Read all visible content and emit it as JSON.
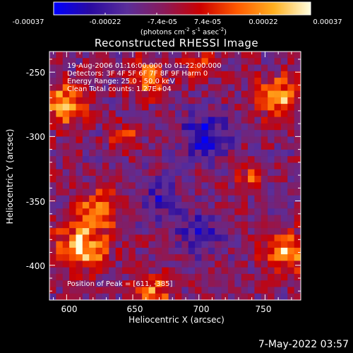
{
  "colorbar": {
    "ticks": [
      "-0.00037",
      "-0.00022",
      "-7.4e-05",
      "7.4e-05",
      "0.00022",
      "0.00037"
    ],
    "units_prefix": "(photons cm",
    "units_exp1": "-2",
    "units_mid": " s",
    "units_exp2": "-1",
    "units_mid2": " asec",
    "units_exp3": "-2",
    "units_suffix": ")"
  },
  "title": "Reconstructed RHESSI Image",
  "annotations": {
    "line1": "19-Aug-2006 01:16:00.000 to 01:22:00.000",
    "line2": "Detectors: 3F 4F 5F 6F 7F 8F 9F  Harm 0",
    "line3": "Energy Range: 25.0 - 50.0 keV",
    "line4": "Clean     Total counts: 1.27E+04",
    "peak": "Position of Peak = [611, -385]"
  },
  "axes": {
    "xlabel": "Heliocentric X (arcsec)",
    "ylabel": "Heliocentric Y (arcsec)",
    "xticks": [
      "600",
      "650",
      "700",
      "750"
    ],
    "yticks": [
      "-250",
      "-300",
      "-350",
      "-400"
    ],
    "x_data_ticks": [
      600,
      650,
      700,
      750
    ],
    "y_data_ticks": [
      -250,
      -300,
      -350,
      -400
    ],
    "xlim": [
      587,
      777
    ],
    "ylim": [
      -427,
      -234
    ]
  },
  "timestamp": "7-May-2022 03:57",
  "map": {
    "cols": 38,
    "rows": 38,
    "peak_xy": [
      611,
      -385
    ],
    "bright_regions": [
      {
        "x": 611,
        "y": -385,
        "r": 18,
        "amp": 1.0
      },
      {
        "x": 600,
        "y": -275,
        "r": 15,
        "amp": 0.85
      },
      {
        "x": 625,
        "y": -355,
        "r": 14,
        "amp": 0.75
      },
      {
        "x": 660,
        "y": -255,
        "r": 13,
        "amp": 0.7
      },
      {
        "x": 760,
        "y": -270,
        "r": 16,
        "amp": 0.75
      },
      {
        "x": 765,
        "y": -390,
        "r": 16,
        "amp": 0.75
      },
      {
        "x": 665,
        "y": -420,
        "r": 12,
        "amp": 0.7
      },
      {
        "x": 645,
        "y": -300,
        "r": 10,
        "amp": 0.55
      },
      {
        "x": 740,
        "y": -330,
        "r": 10,
        "amp": 0.5
      },
      {
        "x": 700,
        "y": -245,
        "r": 10,
        "amp": 0.5
      }
    ],
    "dark_regions": [
      {
        "x": 705,
        "y": -300,
        "r": 18,
        "amp": 0.9
      },
      {
        "x": 700,
        "y": -375,
        "r": 16,
        "amp": 0.7
      },
      {
        "x": 670,
        "y": -350,
        "r": 14,
        "amp": 0.6
      }
    ]
  },
  "colors": {
    "background": "#000000",
    "text": "#ffffff",
    "colormap_stops": [
      "#0000ff",
      "#2a0aa0",
      "#5a2e9a",
      "#8a1a5a",
      "#cc0000",
      "#ff5a00",
      "#ffb020",
      "#ffffe0"
    ]
  }
}
